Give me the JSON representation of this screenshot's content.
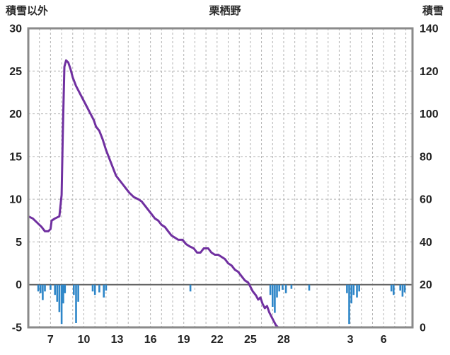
{
  "header": {
    "left_axis_title": "積雪以外",
    "station_title": "栗栖野",
    "right_axis_title": "積雪"
  },
  "colors": {
    "snow_line": "#7030A0",
    "precip_bar": "#2E86C8",
    "frame": "#8a8a8a",
    "grid": "#b3b3b3",
    "zero_line": "#666666",
    "text": "#222222",
    "background": "#ffffff"
  },
  "chart_data": {
    "type": "line+bar",
    "title": "栗栖野",
    "left_axis": {
      "label": "積雪以外",
      "min": -5,
      "max": 30,
      "ticks": [
        30,
        25,
        20,
        15,
        10,
        5,
        0,
        -5
      ]
    },
    "right_axis": {
      "label": "積雪",
      "min": 0,
      "max": 140,
      "ticks": [
        140,
        120,
        100,
        80,
        60,
        40,
        20,
        0
      ]
    },
    "x_axis": {
      "domain": [
        5,
        39.6
      ],
      "gridline_every_day": true,
      "tick_labels": [
        {
          "day": 7,
          "label": "7"
        },
        {
          "day": 10,
          "label": "10"
        },
        {
          "day": 13,
          "label": "13"
        },
        {
          "day": 16,
          "label": "16"
        },
        {
          "day": 19,
          "label": "19"
        },
        {
          "day": 22,
          "label": "22"
        },
        {
          "day": 25,
          "label": "25"
        },
        {
          "day": 28,
          "label": "28"
        },
        {
          "day": 34,
          "label": "3"
        },
        {
          "day": 37,
          "label": "6"
        }
      ]
    },
    "snow_depth_line": {
      "name": "積雪",
      "axis": "right",
      "unit": "cm",
      "points": [
        [
          5.0,
          52
        ],
        [
          5.4,
          51
        ],
        [
          5.8,
          49
        ],
        [
          6.2,
          47
        ],
        [
          6.5,
          45
        ],
        [
          6.8,
          45
        ],
        [
          7.0,
          46
        ],
        [
          7.1,
          50
        ],
        [
          7.4,
          51
        ],
        [
          7.8,
          52
        ],
        [
          8.0,
          62
        ],
        [
          8.1,
          90
        ],
        [
          8.25,
          122
        ],
        [
          8.4,
          125
        ],
        [
          8.6,
          124
        ],
        [
          8.8,
          121
        ],
        [
          9.0,
          117
        ],
        [
          9.3,
          113
        ],
        [
          9.6,
          110
        ],
        [
          10.0,
          106
        ],
        [
          10.3,
          103
        ],
        [
          10.6,
          100
        ],
        [
          10.9,
          97
        ],
        [
          11.1,
          94
        ],
        [
          11.4,
          92
        ],
        [
          11.7,
          88
        ],
        [
          12.0,
          83
        ],
        [
          12.3,
          79
        ],
        [
          12.6,
          75
        ],
        [
          12.9,
          71
        ],
        [
          13.2,
          69
        ],
        [
          13.5,
          67
        ],
        [
          13.8,
          65
        ],
        [
          14.1,
          63
        ],
        [
          14.5,
          61
        ],
        [
          14.9,
          60
        ],
        [
          15.2,
          59
        ],
        [
          15.5,
          57
        ],
        [
          15.8,
          55
        ],
        [
          16.1,
          53
        ],
        [
          16.4,
          51
        ],
        [
          16.7,
          50
        ],
        [
          17.0,
          48
        ],
        [
          17.3,
          47
        ],
        [
          17.6,
          45
        ],
        [
          17.9,
          43
        ],
        [
          18.2,
          42
        ],
        [
          18.5,
          41
        ],
        [
          18.9,
          41
        ],
        [
          19.2,
          39
        ],
        [
          19.5,
          38
        ],
        [
          19.9,
          37
        ],
        [
          20.2,
          35
        ],
        [
          20.5,
          35
        ],
        [
          20.8,
          37
        ],
        [
          21.2,
          37
        ],
        [
          21.5,
          35
        ],
        [
          21.8,
          34
        ],
        [
          22.1,
          34
        ],
        [
          22.4,
          33
        ],
        [
          22.7,
          32
        ],
        [
          23.0,
          30
        ],
        [
          23.3,
          29
        ],
        [
          23.6,
          27
        ],
        [
          23.9,
          26
        ],
        [
          24.2,
          24
        ],
        [
          24.5,
          22
        ],
        [
          24.8,
          21
        ],
        [
          25.0,
          19
        ],
        [
          25.2,
          17
        ],
        [
          25.5,
          15
        ],
        [
          25.7,
          13
        ],
        [
          25.9,
          14
        ],
        [
          26.1,
          11
        ],
        [
          26.3,
          9
        ],
        [
          26.5,
          10
        ],
        [
          26.7,
          7
        ],
        [
          26.9,
          5
        ],
        [
          27.1,
          3
        ],
        [
          27.3,
          1
        ],
        [
          27.5,
          0
        ],
        [
          39.6,
          0
        ]
      ]
    },
    "precip_bars": {
      "name": "積雪以外",
      "axis": "left",
      "direction": "down-from-zero",
      "bars": [
        [
          5.9,
          0.8
        ],
        [
          6.1,
          1.0
        ],
        [
          6.3,
          1.8
        ],
        [
          6.5,
          0.8
        ],
        [
          7.0,
          0.6
        ],
        [
          7.4,
          1.2
        ],
        [
          7.6,
          2.0
        ],
        [
          7.8,
          3.2
        ],
        [
          8.0,
          4.6
        ],
        [
          8.15,
          2.2
        ],
        [
          8.3,
          1.0
        ],
        [
          9.1,
          1.2
        ],
        [
          9.3,
          4.5
        ],
        [
          9.5,
          2.0
        ],
        [
          10.8,
          0.8
        ],
        [
          11.0,
          1.2
        ],
        [
          11.4,
          0.9
        ],
        [
          11.8,
          1.5
        ],
        [
          12.0,
          0.7
        ],
        [
          19.6,
          0.8
        ],
        [
          26.8,
          1.2
        ],
        [
          27.0,
          2.6
        ],
        [
          27.2,
          3.3
        ],
        [
          27.4,
          1.5
        ],
        [
          27.6,
          0.8
        ],
        [
          27.9,
          0.6
        ],
        [
          28.2,
          1.0
        ],
        [
          28.7,
          0.5
        ],
        [
          30.3,
          0.7
        ],
        [
          33.7,
          1.0
        ],
        [
          33.9,
          4.6
        ],
        [
          34.1,
          2.2
        ],
        [
          34.3,
          1.2
        ],
        [
          34.6,
          1.5
        ],
        [
          34.8,
          0.8
        ],
        [
          37.7,
          0.8
        ],
        [
          37.9,
          1.2
        ],
        [
          38.5,
          0.7
        ],
        [
          38.7,
          1.4
        ],
        [
          38.9,
          0.9
        ]
      ]
    }
  }
}
